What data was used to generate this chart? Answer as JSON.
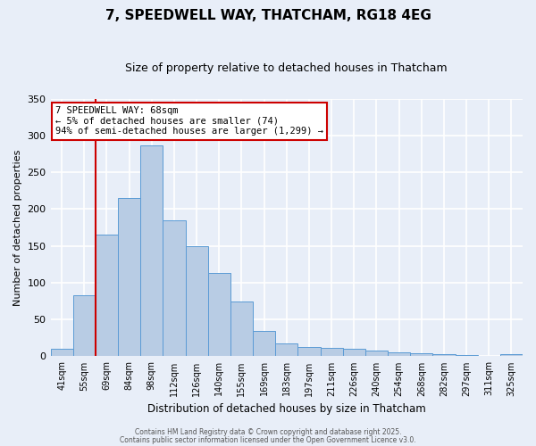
{
  "title": "7, SPEEDWELL WAY, THATCHAM, RG18 4EG",
  "subtitle": "Size of property relative to detached houses in Thatcham",
  "xlabel": "Distribution of detached houses by size in Thatcham",
  "ylabel": "Number of detached properties",
  "categories": [
    "41sqm",
    "55sqm",
    "69sqm",
    "84sqm",
    "98sqm",
    "112sqm",
    "126sqm",
    "140sqm",
    "155sqm",
    "169sqm",
    "183sqm",
    "197sqm",
    "211sqm",
    "226sqm",
    "240sqm",
    "254sqm",
    "268sqm",
    "282sqm",
    "297sqm",
    "311sqm",
    "325sqm"
  ],
  "values": [
    10,
    83,
    165,
    215,
    287,
    185,
    150,
    113,
    75,
    35,
    17,
    13,
    11,
    10,
    8,
    5,
    4,
    3,
    2,
    1,
    3
  ],
  "bar_color": "#b8cce4",
  "bar_edge_color": "#5b9bd5",
  "vline_color": "#cc0000",
  "annotation_title": "7 SPEEDWELL WAY: 68sqm",
  "annotation_line1": "← 5% of detached houses are smaller (74)",
  "annotation_line2": "94% of semi-detached houses are larger (1,299) →",
  "annotation_box_color": "#ffffff",
  "annotation_box_edge": "#cc0000",
  "ylim": [
    0,
    350
  ],
  "yticks": [
    0,
    50,
    100,
    150,
    200,
    250,
    300,
    350
  ],
  "background_color": "#e8eef8",
  "grid_color": "#ffffff",
  "footer1": "Contains HM Land Registry data © Crown copyright and database right 2025.",
  "footer2": "Contains public sector information licensed under the Open Government Licence v3.0.",
  "title_fontsize": 11,
  "subtitle_fontsize": 9
}
